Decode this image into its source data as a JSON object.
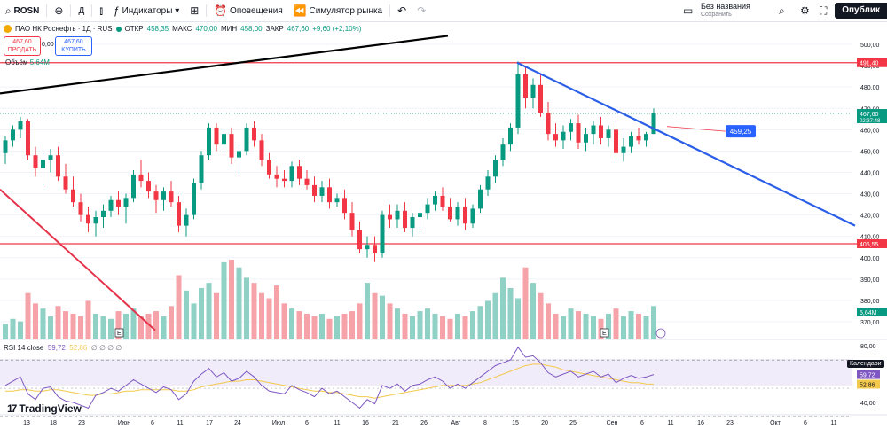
{
  "toolbar": {
    "symbol": "ROSN",
    "add_icon": "plus-circle-icon",
    "interval": "Д",
    "indicators_label": "Индикаторы",
    "alerts_label": "Оповещения",
    "replay_label": "Симулятор рынка",
    "save_title": "Без названия",
    "save_sub": "Сохранить",
    "publish_label": "Опублик"
  },
  "legend": {
    "title": "ПАО НК Роснефть · 1Д · RUS",
    "open_label": "ОТКР",
    "open_value": "458,35",
    "high_label": "МАКС",
    "high_value": "470,00",
    "low_label": "МИН",
    "low_value": "458,00",
    "close_label": "ЗАКР",
    "close_value": "467,60",
    "change": "+9,60 (+2,10%)",
    "sell_price": "467,60",
    "sell_label": "ПРОДАТЬ",
    "spread": "0,00",
    "buy_price": "467,60",
    "buy_label": "КУПИТЬ",
    "volume_label": "Объём",
    "volume_value": "5,64M"
  },
  "rsi": {
    "label": "RSI 14 close",
    "value": "59,72",
    "ma_value": "52,86",
    "extra": "∅ ∅ ∅ ∅"
  },
  "branding": {
    "logo_text": "TradingView"
  },
  "calendar_tag": "Календари",
  "colors": {
    "up": "#089981",
    "down": "#f23645",
    "up_vol": "#8fd1c4",
    "down_vol": "#f5a3a9",
    "rsi": "#7e57c2",
    "rsi_ma": "#f2c94c"
  },
  "chart_data": {
    "type": "candlestick",
    "title": "ПАО НК Роснефть · 1Д · RUS",
    "price_axis": {
      "min": 365,
      "max": 505,
      "ticks": [
        500,
        490,
        480,
        470,
        460,
        450,
        440,
        430,
        420,
        410,
        400,
        390,
        380,
        370
      ]
    },
    "price_tags": [
      {
        "value": 491.4,
        "label": "491,40",
        "color": "#f23645"
      },
      {
        "value": 467.6,
        "label": "467,60",
        "sub": "02:37:48",
        "color": "#089981"
      },
      {
        "value": 406.55,
        "label": "406,55",
        "color": "#f23645"
      }
    ],
    "volume_tag": "5,64M",
    "annotation": {
      "label": "459,25",
      "price": 459.25
    },
    "horizontal_levels": [
      491.4,
      406.55
    ],
    "x_ticks": [
      "13",
      "18",
      "23",
      "Июн",
      "6",
      "11",
      "17",
      "24",
      "Июл",
      "6",
      "11",
      "16",
      "21",
      "26",
      "Авг",
      "8",
      "15",
      "20",
      "25",
      "Сен",
      "6",
      "11",
      "16",
      "23",
      "Окт",
      "6",
      "11"
    ],
    "rsi_axis": {
      "min": 35,
      "max": 82,
      "ticks": [
        80,
        60,
        40
      ]
    },
    "rsi_tags": [
      {
        "value": 59.72,
        "label": "59,72"
      },
      {
        "value": 52.86,
        "label": "52,86"
      }
    ],
    "candles": [
      [
        449,
        457,
        444,
        455
      ],
      [
        455,
        462,
        452,
        460
      ],
      [
        460,
        466,
        456,
        464
      ],
      [
        464,
        465,
        446,
        448
      ],
      [
        448,
        452,
        438,
        442
      ],
      [
        442,
        449,
        434,
        446
      ],
      [
        446,
        451,
        440,
        448
      ],
      [
        448,
        452,
        436,
        438
      ],
      [
        438,
        444,
        430,
        432
      ],
      [
        432,
        438,
        424,
        426
      ],
      [
        426,
        430,
        417,
        420
      ],
      [
        420,
        424,
        412,
        416
      ],
      [
        416,
        422,
        410,
        419
      ],
      [
        419,
        425,
        414,
        422
      ],
      [
        422,
        429,
        419,
        427
      ],
      [
        427,
        431,
        420,
        424
      ],
      [
        424,
        430,
        416,
        428
      ],
      [
        428,
        441,
        426,
        439
      ],
      [
        439,
        446,
        433,
        436
      ],
      [
        436,
        440,
        428,
        431
      ],
      [
        431,
        434,
        421,
        427
      ],
      [
        427,
        433,
        422,
        431
      ],
      [
        431,
        436,
        424,
        426
      ],
      [
        426,
        429,
        412,
        415
      ],
      [
        415,
        423,
        410,
        420
      ],
      [
        420,
        437,
        418,
        435
      ],
      [
        435,
        450,
        432,
        448
      ],
      [
        448,
        463,
        446,
        461
      ],
      [
        461,
        463,
        450,
        453
      ],
      [
        453,
        460,
        448,
        458
      ],
      [
        458,
        461,
        444,
        447
      ],
      [
        447,
        454,
        438,
        450
      ],
      [
        450,
        463,
        448,
        461
      ],
      [
        461,
        464,
        452,
        455
      ],
      [
        455,
        458,
        443,
        446
      ],
      [
        446,
        449,
        437,
        439
      ],
      [
        439,
        443,
        433,
        437
      ],
      [
        437,
        441,
        433,
        436
      ],
      [
        436,
        445,
        433,
        443
      ],
      [
        443,
        446,
        434,
        437
      ],
      [
        437,
        441,
        432,
        434
      ],
      [
        434,
        438,
        426,
        429
      ],
      [
        429,
        436,
        426,
        433
      ],
      [
        433,
        437,
        423,
        426
      ],
      [
        426,
        430,
        424,
        428
      ],
      [
        428,
        432,
        418,
        421
      ],
      [
        421,
        426,
        410,
        413
      ],
      [
        413,
        417,
        402,
        404
      ],
      [
        404,
        410,
        400,
        406
      ],
      [
        406,
        410,
        398,
        402
      ],
      [
        402,
        422,
        400,
        420
      ],
      [
        420,
        425,
        414,
        418
      ],
      [
        418,
        425,
        414,
        422
      ],
      [
        422,
        426,
        412,
        414
      ],
      [
        414,
        421,
        410,
        419
      ],
      [
        419,
        423,
        414,
        421
      ],
      [
        421,
        428,
        418,
        425
      ],
      [
        425,
        431,
        422,
        429
      ],
      [
        429,
        433,
        422,
        424
      ],
      [
        424,
        428,
        417,
        418
      ],
      [
        418,
        426,
        415,
        424
      ],
      [
        424,
        428,
        413,
        416
      ],
      [
        416,
        425,
        414,
        423
      ],
      [
        423,
        434,
        421,
        432
      ],
      [
        432,
        441,
        429,
        438
      ],
      [
        438,
        448,
        435,
        446
      ],
      [
        446,
        456,
        443,
        453
      ],
      [
        453,
        463,
        450,
        461
      ],
      [
        461,
        492,
        458,
        486
      ],
      [
        486,
        490,
        470,
        475
      ],
      [
        475,
        484,
        470,
        481
      ],
      [
        481,
        486,
        466,
        468
      ],
      [
        468,
        473,
        455,
        458
      ],
      [
        458,
        463,
        452,
        455
      ],
      [
        455,
        462,
        451,
        459
      ],
      [
        459,
        465,
        455,
        463
      ],
      [
        463,
        467,
        451,
        454
      ],
      [
        454,
        461,
        450,
        458
      ],
      [
        458,
        464,
        453,
        462
      ],
      [
        462,
        466,
        453,
        456
      ],
      [
        456,
        462,
        452,
        460
      ],
      [
        460,
        463,
        447,
        449
      ],
      [
        449,
        456,
        445,
        452
      ],
      [
        452,
        459,
        449,
        457
      ],
      [
        457,
        461,
        453,
        455
      ],
      [
        455,
        459,
        452,
        458
      ],
      [
        458,
        470,
        458,
        467.6
      ]
    ],
    "volume": [
      6,
      8,
      7,
      18,
      14,
      12,
      9,
      13,
      11,
      10,
      9,
      15,
      10,
      9,
      8,
      11,
      10,
      12,
      9,
      10,
      11,
      9,
      13,
      25,
      19,
      14,
      20,
      22,
      18,
      30,
      31,
      28,
      24,
      22,
      18,
      16,
      21,
      14,
      12,
      11,
      10,
      9,
      10,
      8,
      9,
      10,
      11,
      14,
      22,
      18,
      17,
      14,
      12,
      10,
      9,
      11,
      12,
      10,
      9,
      8,
      10,
      9,
      11,
      13,
      15,
      18,
      24,
      20,
      16,
      28,
      22,
      18,
      14,
      10,
      9,
      12,
      11,
      10,
      9,
      8,
      10,
      12,
      9,
      11,
      10,
      9,
      13
    ],
    "rsi": [
      52,
      55,
      58,
      46,
      42,
      50,
      51,
      44,
      41,
      40,
      38,
      36,
      45,
      47,
      50,
      48,
      52,
      56,
      53,
      50,
      47,
      51,
      49,
      42,
      46,
      55,
      60,
      64,
      58,
      61,
      55,
      57,
      62,
      58,
      52,
      48,
      47,
      46,
      52,
      49,
      47,
      44,
      50,
      46,
      48,
      44,
      40,
      36,
      42,
      39,
      52,
      50,
      53,
      48,
      52,
      53,
      56,
      58,
      55,
      50,
      53,
      50,
      54,
      58,
      62,
      66,
      68,
      70,
      79,
      72,
      73,
      68,
      61,
      58,
      60,
      62,
      58,
      60,
      62,
      58,
      60,
      54,
      57,
      59,
      57,
      58,
      59.72
    ],
    "rsi_ma": [
      48,
      48,
      49,
      49,
      48,
      48,
      49,
      49,
      48,
      47,
      46,
      45,
      45,
      46,
      46,
      47,
      48,
      48,
      49,
      49,
      49,
      49,
      49,
      48,
      48,
      49,
      51,
      52,
      53,
      54,
      55,
      55,
      56,
      56,
      55,
      54,
      53,
      52,
      51,
      50,
      49,
      48,
      48,
      47,
      47,
      46,
      45,
      44,
      44,
      43,
      44,
      45,
      46,
      47,
      48,
      49,
      50,
      51,
      52,
      52,
      52,
      52,
      53,
      54,
      56,
      58,
      60,
      62,
      64,
      66,
      67,
      67,
      66,
      65,
      63,
      62,
      61,
      60,
      59,
      58,
      57,
      56,
      55,
      54,
      54,
      53,
      52.86
    ]
  }
}
